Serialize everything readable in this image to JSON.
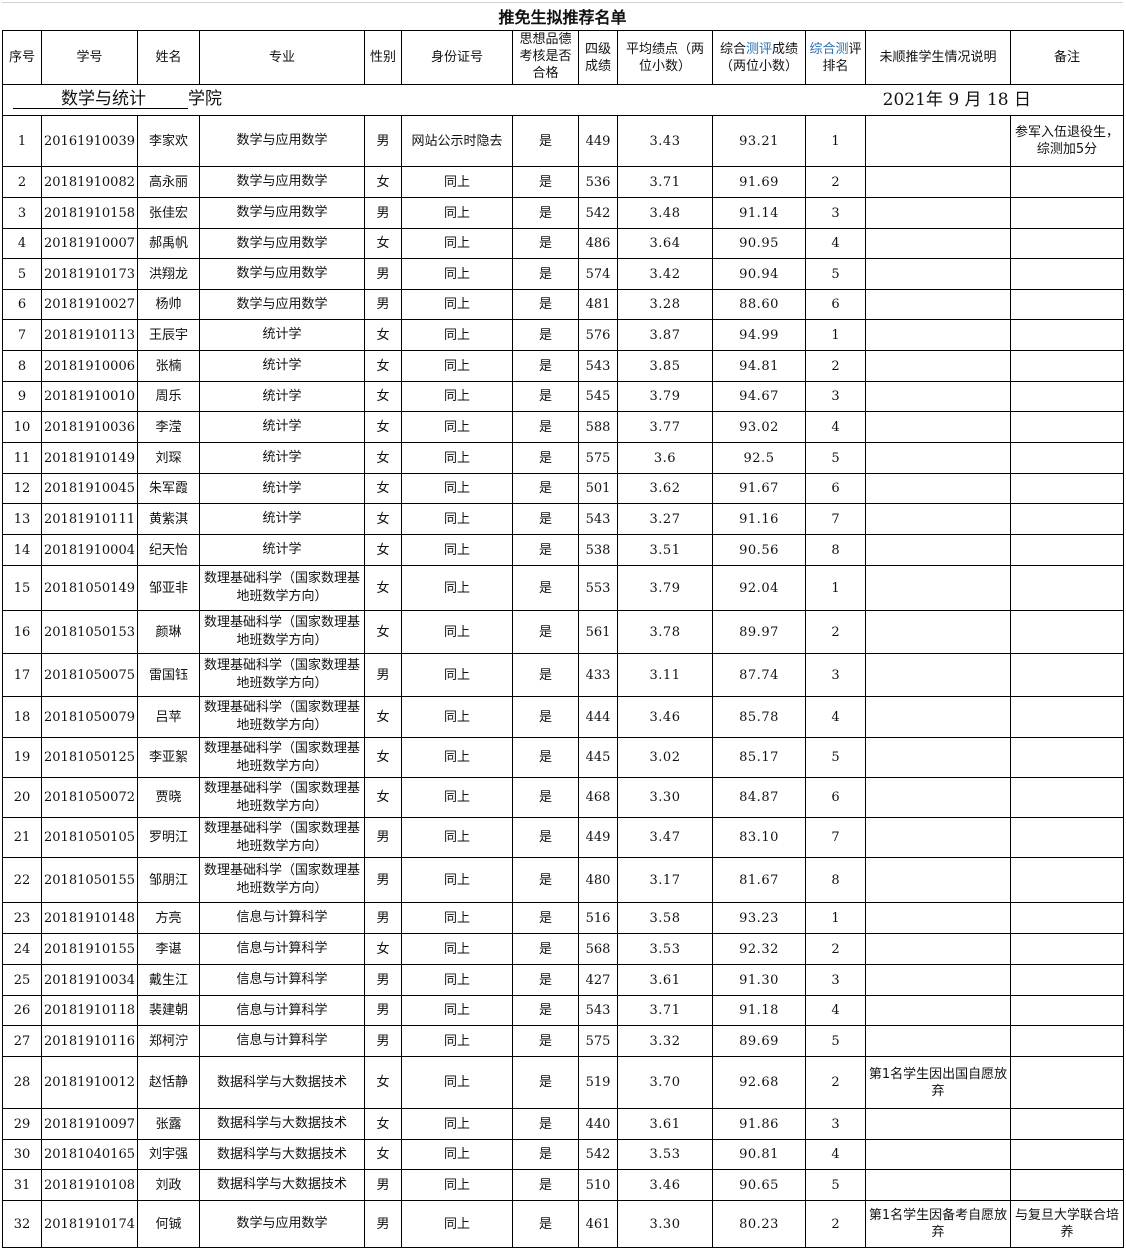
{
  "title": "推免生拟推荐名单",
  "college": {
    "name": "数学与统计",
    "suffix": "学院"
  },
  "date": "2021年 9 月 18 日",
  "headers": {
    "seq": "序号",
    "student_id": "学号",
    "name": "姓名",
    "major": "专业",
    "gender": "性别",
    "id_card": "身份证号",
    "moral": "思想品德考核是否合格",
    "cet4": "四级成绩",
    "gpa": "平均绩点（两位小数）",
    "comp_score_a": "综合",
    "comp_score_b": "测评",
    "comp_score_c": "成绩（两位小数）",
    "comp_rank_a": "综合测",
    "comp_rank_b": "评排名",
    "note_unrecommended": "未顺推学生情况说明",
    "remark": "备注"
  },
  "rows": [
    [
      "1",
      "20161910039",
      "李家欢",
      "数学与应用数学",
      "男",
      "网站公示时隐去",
      "是",
      "449",
      "3.43",
      "93.21",
      "1",
      "",
      "参军入伍退役生，综测加5分"
    ],
    [
      "2",
      "20181910082",
      "高永丽",
      "数学与应用数学",
      "女",
      "同上",
      "是",
      "536",
      "3.71",
      "91.69",
      "2",
      "",
      ""
    ],
    [
      "3",
      "20181910158",
      "张佳宏",
      "数学与应用数学",
      "男",
      "同上",
      "是",
      "542",
      "3.48",
      "91.14",
      "3",
      "",
      ""
    ],
    [
      "4",
      "20181910007",
      "郝禹帆",
      "数学与应用数学",
      "女",
      "同上",
      "是",
      "486",
      "3.64",
      "90.95",
      "4",
      "",
      ""
    ],
    [
      "5",
      "20181910173",
      "洪翔龙",
      "数学与应用数学",
      "男",
      "同上",
      "是",
      "574",
      "3.42",
      "90.94",
      "5",
      "",
      ""
    ],
    [
      "6",
      "20181910027",
      "杨帅",
      "数学与应用数学",
      "男",
      "同上",
      "是",
      "481",
      "3.28",
      "88.60",
      "6",
      "",
      ""
    ],
    [
      "7",
      "20181910113",
      "王辰宇",
      "统计学",
      "女",
      "同上",
      "是",
      "576",
      "3.87",
      "94.99",
      "1",
      "",
      ""
    ],
    [
      "8",
      "20181910006",
      "张楠",
      "统计学",
      "女",
      "同上",
      "是",
      "543",
      "3.85",
      "94.81",
      "2",
      "",
      ""
    ],
    [
      "9",
      "20181910010",
      "周乐",
      "统计学",
      "女",
      "同上",
      "是",
      "545",
      "3.79",
      "94.67",
      "3",
      "",
      ""
    ],
    [
      "10",
      "20181910036",
      "李滢",
      "统计学",
      "女",
      "同上",
      "是",
      "588",
      "3.77",
      "93.02",
      "4",
      "",
      ""
    ],
    [
      "11",
      "20181910149",
      "刘琛",
      "统计学",
      "女",
      "同上",
      "是",
      "575",
      "3.6",
      "92.5",
      "5",
      "",
      ""
    ],
    [
      "12",
      "20181910045",
      "朱军霞",
      "统计学",
      "女",
      "同上",
      "是",
      "501",
      "3.62",
      "91.67",
      "6",
      "",
      ""
    ],
    [
      "13",
      "20181910111",
      "黄紫淇",
      "统计学",
      "女",
      "同上",
      "是",
      "543",
      "3.27",
      "91.16",
      "7",
      "",
      ""
    ],
    [
      "14",
      "20181910004",
      "纪天怡",
      "统计学",
      "女",
      "同上",
      "是",
      "538",
      "3.51",
      "90.56",
      "8",
      "",
      ""
    ],
    [
      "15",
      "20181050149",
      "邹亚非",
      "数理基础科学（国家数理基地班数学方向）",
      "女",
      "同上",
      "是",
      "553",
      "3.79",
      "92.04",
      "1",
      "",
      ""
    ],
    [
      "16",
      "20181050153",
      "颜琳",
      "数理基础科学（国家数理基地班数学方向）",
      "女",
      "同上",
      "是",
      "561",
      "3.78",
      "89.97",
      "2",
      "",
      ""
    ],
    [
      "17",
      "20181050075",
      "雷国钰",
      "数理基础科学（国家数理基地班数学方向）",
      "男",
      "同上",
      "是",
      "433",
      "3.11",
      "87.74",
      "3",
      "",
      ""
    ],
    [
      "18",
      "20181050079",
      "吕苹",
      "数理基础科学（国家数理基地班数学方向）",
      "女",
      "同上",
      "是",
      "444",
      "3.46",
      "85.78",
      "4",
      "",
      ""
    ],
    [
      "19",
      "20181050125",
      "李亚絮",
      "数理基础科学（国家数理基地班数学方向）",
      "女",
      "同上",
      "是",
      "445",
      "3.02",
      "85.17",
      "5",
      "",
      ""
    ],
    [
      "20",
      "20181050072",
      "贾晓",
      "数理基础科学（国家数理基地班数学方向）",
      "女",
      "同上",
      "是",
      "468",
      "3.30",
      "84.87",
      "6",
      "",
      ""
    ],
    [
      "21",
      "20181050105",
      "罗明江",
      "数理基础科学（国家数理基地班数学方向）",
      "男",
      "同上",
      "是",
      "449",
      "3.47",
      "83.10",
      "7",
      "",
      ""
    ],
    [
      "22",
      "20181050155",
      "邹朋江",
      "数理基础科学（国家数理基地班数学方向）",
      "男",
      "同上",
      "是",
      "480",
      "3.17",
      "81.67",
      "8",
      "",
      ""
    ],
    [
      "23",
      "20181910148",
      "方亮",
      "信息与计算科学",
      "男",
      "同上",
      "是",
      "516",
      "3.58",
      "93.23",
      "1",
      "",
      ""
    ],
    [
      "24",
      "20181910155",
      "李谌",
      "信息与计算科学",
      "女",
      "同上",
      "是",
      "568",
      "3.53",
      "92.32",
      "2",
      "",
      ""
    ],
    [
      "25",
      "20181910034",
      "戴生江",
      "信息与计算科学",
      "男",
      "同上",
      "是",
      "427",
      "3.61",
      "91.30",
      "3",
      "",
      ""
    ],
    [
      "26",
      "20181910118",
      "裴建朝",
      "信息与计算科学",
      "男",
      "同上",
      "是",
      "543",
      "3.71",
      "91.18",
      "4",
      "",
      ""
    ],
    [
      "27",
      "20181910116",
      "郑柯泞",
      "信息与计算科学",
      "男",
      "同上",
      "是",
      "575",
      "3.32",
      "89.69",
      "5",
      "",
      ""
    ],
    [
      "28",
      "20181910012",
      "赵恬静",
      "数据科学与大数据技术",
      "女",
      "同上",
      "是",
      "519",
      "3.70",
      "92.68",
      "2",
      "第1名学生因出国自愿放弃",
      ""
    ],
    [
      "29",
      "20181910097",
      "张露",
      "数据科学与大数据技术",
      "女",
      "同上",
      "是",
      "440",
      "3.61",
      "91.86",
      "3",
      "",
      ""
    ],
    [
      "30",
      "20181040165",
      "刘宇强",
      "数据科学与大数据技术",
      "女",
      "同上",
      "是",
      "542",
      "3.53",
      "90.81",
      "4",
      "",
      ""
    ],
    [
      "31",
      "20181910108",
      "刘政",
      "数据科学与大数据技术",
      "男",
      "同上",
      "是",
      "510",
      "3.46",
      "90.65",
      "5",
      "",
      ""
    ],
    [
      "32",
      "20181910174",
      "何铖",
      "数学与应用数学",
      "男",
      "同上",
      "是",
      "461",
      "3.30",
      "80.23",
      "2",
      "第1名学生因备考自愿放弃",
      "与复旦大学联合培养"
    ]
  ]
}
